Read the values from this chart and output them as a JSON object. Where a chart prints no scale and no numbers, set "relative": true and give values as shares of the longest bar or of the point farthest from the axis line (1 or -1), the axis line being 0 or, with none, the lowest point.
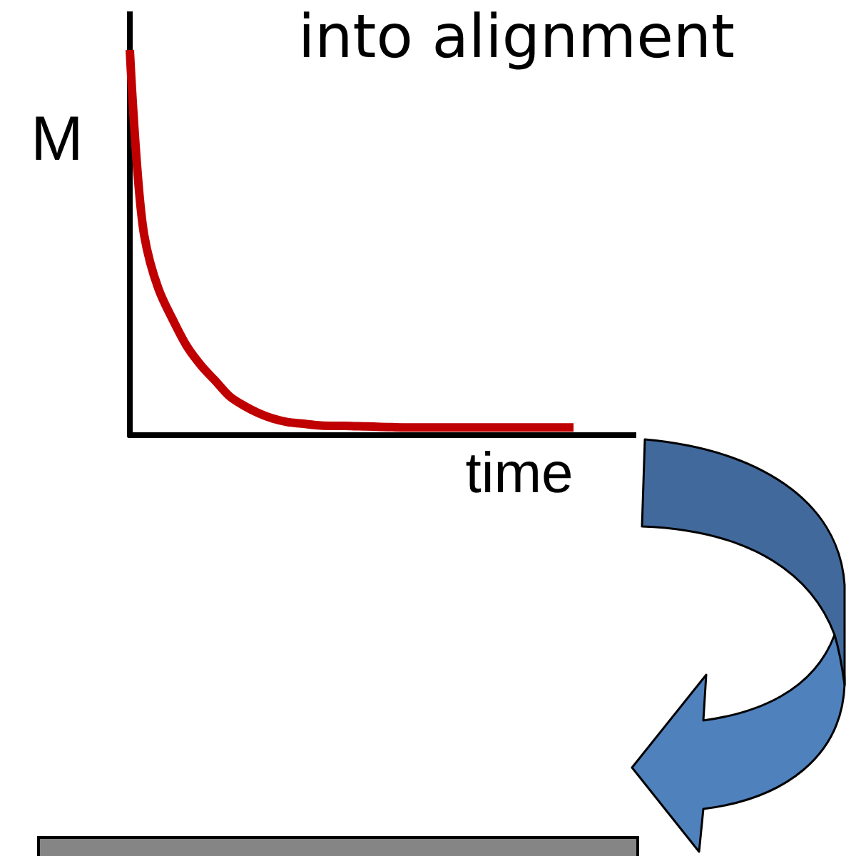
{
  "chart_data": {
    "type": "line",
    "title": "into alignment",
    "xlabel": "time",
    "ylabel": "M",
    "relative": true,
    "categories": [
      null,
      null,
      null,
      null,
      null,
      null,
      null,
      null,
      null,
      null,
      null,
      null,
      null,
      null,
      null,
      null,
      null,
      null,
      null,
      null,
      null,
      null,
      null,
      null,
      null,
      null,
      null,
      null,
      null,
      null,
      null,
      null
    ],
    "series": [
      {
        "color": "#c00000",
        "values": [
          1,
          0.52,
          0.38,
          0.3,
          0.23,
          0.18,
          0.14,
          0.1,
          0.076,
          0.057,
          0.043,
          0.034,
          0.03,
          0.026,
          0.024,
          0.024,
          0.023,
          0.022,
          0.021,
          0.02,
          0.02,
          0.02,
          0.02,
          0.02,
          0.02,
          0.02,
          0.02,
          0.02,
          0.02,
          0.02,
          0.02,
          0.02
        ]
      }
    ]
  }
}
